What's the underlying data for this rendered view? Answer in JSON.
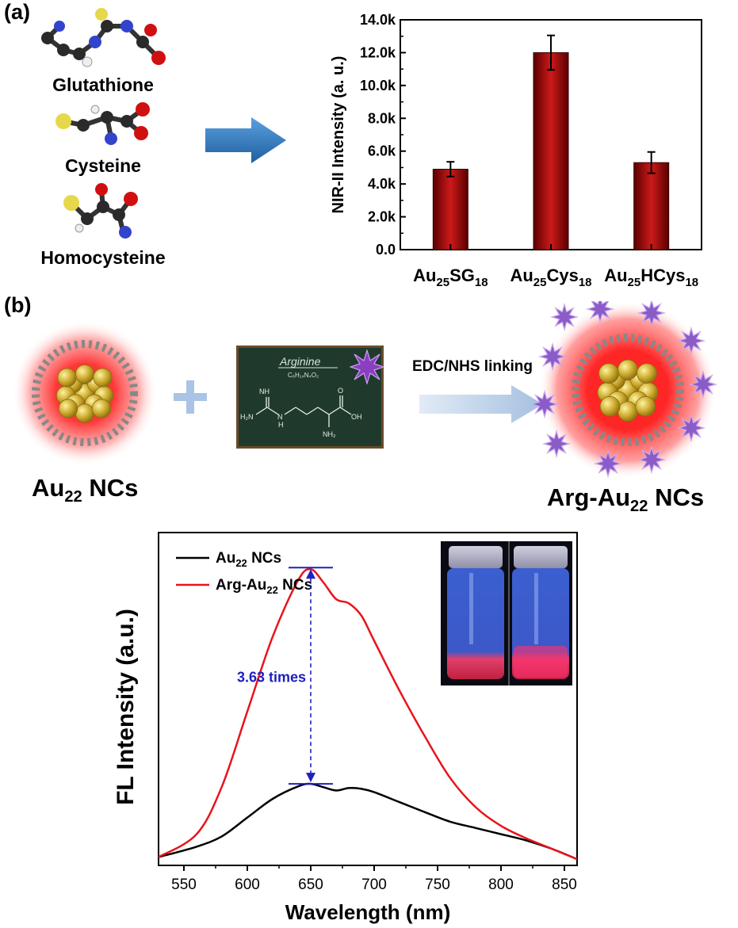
{
  "panel_a": {
    "label": "(a)",
    "molecules": [
      "Glutathione",
      "Cysteine",
      "Homocysteine"
    ],
    "chart_data": {
      "type": "bar",
      "categories": [
        {
          "base": "Au",
          "sub1": "25",
          "mid": "SG",
          "sub2": "18"
        },
        {
          "base": "Au",
          "sub1": "25",
          "mid": "Cys",
          "sub2": "18"
        },
        {
          "base": "Au",
          "sub1": "25",
          "mid": "HCys",
          "sub2": "18"
        }
      ],
      "values": [
        4900,
        12000,
        5300
      ],
      "errors": [
        450,
        1050,
        650
      ],
      "ylabel": "NIR-II Intensity (a. u.)",
      "ylim": [
        0,
        14000
      ],
      "yticks": [
        "0.0",
        "2.0k",
        "4.0k",
        "6.0k",
        "8.0k",
        "10.0k",
        "12.0k",
        "14.0k"
      ],
      "bar_color": "#cc1a1a"
    }
  },
  "panel_b": {
    "label": "(b)",
    "left_np": {
      "base": "Au",
      "sub": "22",
      "rest": " NCs"
    },
    "reagent_title": "Arginine",
    "reagent_formula": "C₆H₁₄N₄O₂",
    "atoms": {
      "nh": "NH",
      "h2n": "H₂N",
      "n": "N",
      "h": "H",
      "o": "O",
      "oh": "OH",
      "nh2": "NH₂"
    },
    "arrow_label": "EDC/NHS linking",
    "right_np": {
      "base": "Arg-Au",
      "sub": "22",
      "rest": " NCs"
    }
  },
  "spectrum": {
    "chart_data": {
      "type": "line",
      "xlabel": "Wavelength (nm)",
      "ylabel": "FL Intensity (a.u.)",
      "xlim": [
        530,
        860
      ],
      "xticks": [
        550,
        600,
        650,
        700,
        750,
        800,
        850
      ],
      "series": [
        {
          "name": "Au22 NCs",
          "legend_base": "Au",
          "legend_sub": "22",
          "legend_rest": " NCs",
          "color": "#000000",
          "x": [
            530,
            560,
            580,
            600,
            620,
            640,
            650,
            660,
            670,
            680,
            690,
            700,
            720,
            740,
            760,
            780,
            800,
            820,
            840,
            860
          ],
          "y": [
            0.02,
            0.045,
            0.07,
            0.115,
            0.16,
            0.19,
            0.196,
            0.188,
            0.18,
            0.186,
            0.184,
            0.176,
            0.152,
            0.128,
            0.105,
            0.09,
            0.075,
            0.06,
            0.04,
            0.015
          ]
        },
        {
          "name": "Arg-Au22 NCs",
          "legend_base": "Arg-Au",
          "legend_sub": "22",
          "legend_rest": " NCs",
          "color": "#e8141c",
          "x": [
            530,
            560,
            580,
            600,
            620,
            640,
            650,
            660,
            670,
            680,
            690,
            700,
            720,
            740,
            760,
            780,
            800,
            820,
            840,
            860
          ],
          "y": [
            0.02,
            0.075,
            0.19,
            0.37,
            0.55,
            0.685,
            0.712,
            0.68,
            0.64,
            0.63,
            0.6,
            0.54,
            0.42,
            0.31,
            0.21,
            0.14,
            0.095,
            0.065,
            0.04,
            0.015
          ]
        }
      ],
      "annotation": "3.63 times",
      "annotation_color": "#2020c0"
    }
  }
}
